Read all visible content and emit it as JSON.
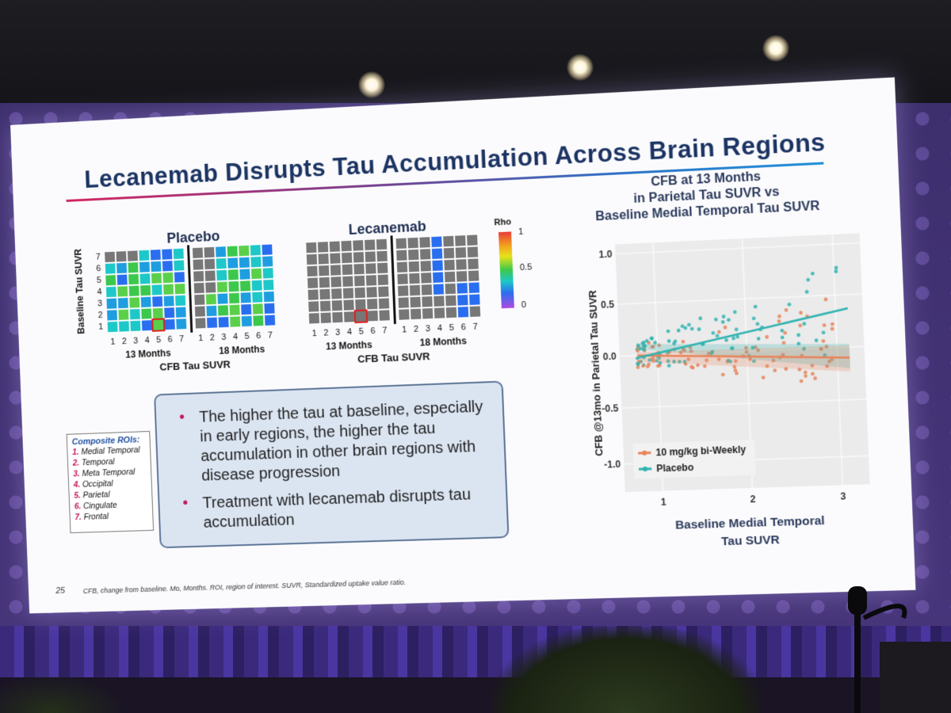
{
  "slide": {
    "title": "Lecanemab Disrupts Tau Accumulation Across Brain Regions",
    "page_number": "25",
    "footnote": "CFB, change from baseline. Mo, Months. ROI, region of interest. SUVR, Standardized uptake value ratio."
  },
  "heatmaps": {
    "placebo_title": "Placebo",
    "lecanemab_title": "Lecanemab",
    "y_axis_label": "Baseline Tau SUVR",
    "x_axis_label": "CFB Tau SUVR",
    "period_13": "13 Months",
    "period_18": "18 Months",
    "ticks": [
      "1",
      "2",
      "3",
      "4",
      "5",
      "6",
      "7"
    ],
    "colorbar_title": "Rho",
    "colorbar_ticks": [
      "1",
      "0.5",
      "0"
    ]
  },
  "rois": {
    "heading": "Composite ROIs:",
    "items": [
      {
        "num": "1.",
        "name": "Medial Temporal"
      },
      {
        "num": "2.",
        "name": "Temporal"
      },
      {
        "num": "3.",
        "name": "Meta Temporal"
      },
      {
        "num": "4.",
        "name": "Occipital"
      },
      {
        "num": "5.",
        "name": "Parietal"
      },
      {
        "num": "6.",
        "name": "Cingulate"
      },
      {
        "num": "7.",
        "name": "Frontal"
      }
    ]
  },
  "bullets": [
    "The higher the tau at baseline, especially in early regions, the higher the tau accumulation in other brain regions with disease progression",
    "Treatment with lecanemab disrupts tau accumulation"
  ],
  "scatter": {
    "title_line1": "CFB at 13 Months",
    "title_line2": "in Parietal Tau SUVR vs",
    "title_line3": "Baseline Medial Temporal Tau SUVR",
    "y_label": "CFB @13mo in Parietal Tau SUVR",
    "x_label_line1": "Baseline Medial Temporal",
    "x_label_line2": "Tau SUVR",
    "y_ticks": [
      "1.0",
      "0.5",
      "0.0",
      "-0.5",
      "-1.0"
    ],
    "x_ticks": [
      "1",
      "2",
      "3"
    ],
    "legend": [
      {
        "label": "10 mg/kg bi-Weekly",
        "color": "#e8845a"
      },
      {
        "label": "Placebo",
        "color": "#2fb3b0"
      }
    ]
  }
}
